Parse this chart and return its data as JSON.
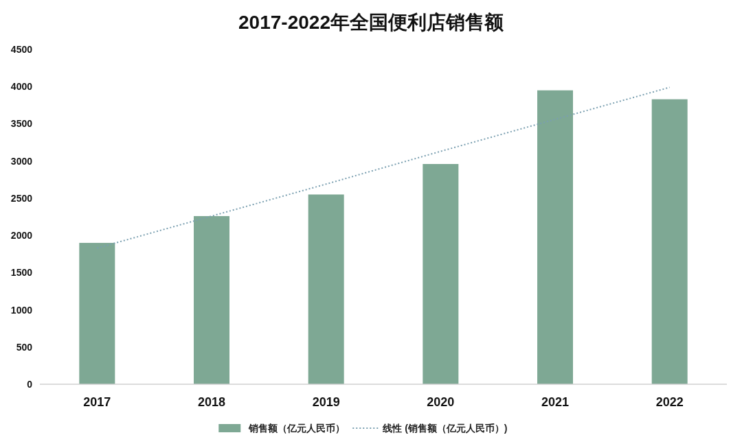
{
  "chart_data": {
    "type": "bar",
    "title": "2017-2022年全国便利店销售额",
    "categories": [
      "2017",
      "2018",
      "2019",
      "2020",
      "2021",
      "2022"
    ],
    "series": [
      {
        "name": "销售额（亿元人民币）",
        "color": "#7ea894",
        "values": [
          1900,
          2260,
          2550,
          2960,
          3950,
          3830
        ]
      },
      {
        "name": "线性 (销售额（亿元人民币）)",
        "type": "line",
        "color": "#7a9fb0",
        "line_style": "dotted",
        "values": [
          1830,
          2260,
          2690,
          3130,
          3560,
          3990
        ]
      }
    ],
    "ylim": [
      0,
      4500
    ],
    "yticks": [
      0,
      500,
      1000,
      1500,
      2000,
      2500,
      3000,
      3500,
      4000,
      4500
    ],
    "grid": false,
    "legend": "bottom",
    "marker": "none"
  }
}
